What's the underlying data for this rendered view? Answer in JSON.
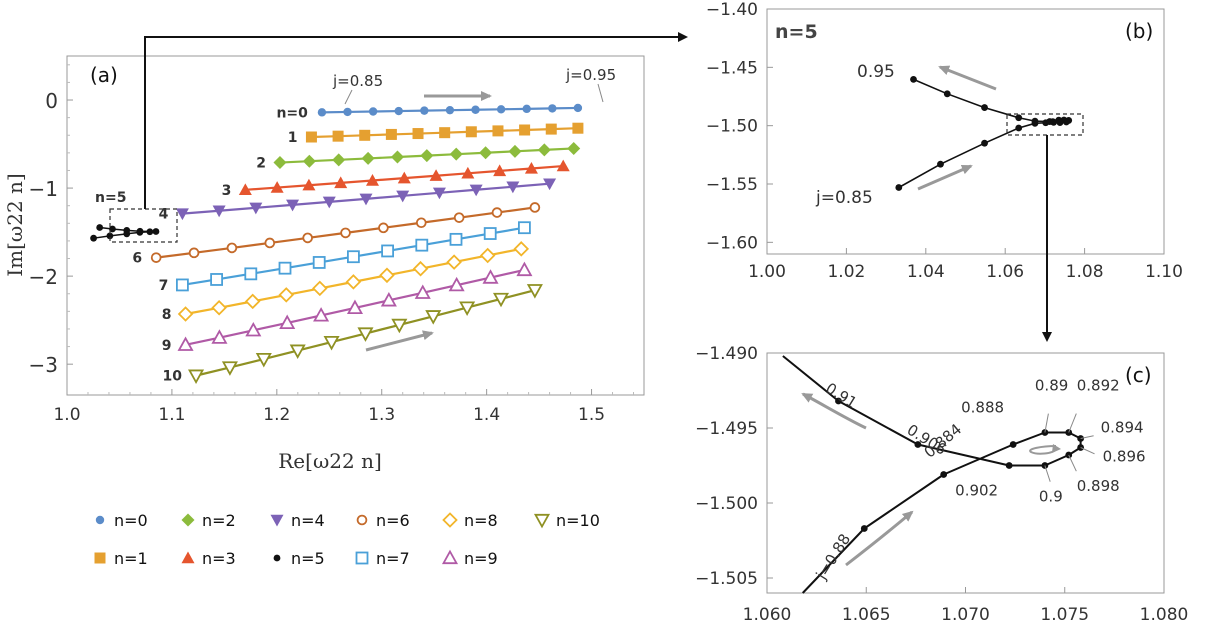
{
  "chart_data": [
    {
      "panel": "(a)",
      "type": "line",
      "xlabel": "Re[ω22 n]",
      "ylabel": "Im[ω22 n]",
      "xlim": [
        1.0,
        1.55
      ],
      "ylim": [
        -3.35,
        0.5
      ],
      "xticks": [
        "1.0",
        "1.1",
        "1.2",
        "1.3",
        "1.4",
        "1.5"
      ],
      "yticks": [
        "0",
        "-1",
        "-2",
        "-3"
      ],
      "annotations": [
        "j=0.85",
        "j=0.95",
        "n=5"
      ],
      "series": [
        {
          "name": "n=0",
          "label": "n=0",
          "color": "#5b8cc9",
          "marker": "circle",
          "re_range": [
            1.243,
            1.487
          ],
          "im_range": [
            -0.14,
            -0.09
          ]
        },
        {
          "name": "n=1",
          "label": "1",
          "color": "#e5a030",
          "marker": "square",
          "re_range": [
            1.233,
            1.487
          ],
          "im_range": [
            -0.42,
            -0.32
          ]
        },
        {
          "name": "n=2",
          "label": "2",
          "color": "#8cbb3c",
          "marker": "diamond",
          "re_range": [
            1.203,
            1.483
          ],
          "im_range": [
            -0.71,
            -0.55
          ]
        },
        {
          "name": "n=3",
          "label": "3",
          "color": "#e5552e",
          "marker": "triangle-up",
          "re_range": [
            1.17,
            1.473
          ],
          "im_range": [
            -1.02,
            -0.75
          ]
        },
        {
          "name": "n=4",
          "label": "4",
          "color": "#7c62b6",
          "marker": "triangle-down",
          "re_range": [
            1.11,
            1.46
          ],
          "im_range": [
            -1.29,
            -0.95
          ]
        },
        {
          "name": "n=5",
          "label": "n=5",
          "color": "#111111",
          "marker": "dot",
          "re_range": [
            1.033,
            1.076
          ],
          "im_range": [
            -1.56,
            -1.45
          ]
        },
        {
          "name": "n=6",
          "label": "6",
          "color": "#c46a2a",
          "marker": "open-circle",
          "re_range": [
            1.085,
            1.446
          ],
          "im_range": [
            -1.79,
            -1.22
          ]
        },
        {
          "name": "n=7",
          "label": "7",
          "color": "#4aa0d8",
          "marker": "open-square",
          "re_range": [
            1.11,
            1.436
          ],
          "im_range": [
            -2.1,
            -1.45
          ]
        },
        {
          "name": "n=8",
          "label": "8",
          "color": "#f2b52a",
          "marker": "open-diamond",
          "re_range": [
            1.113,
            1.433
          ],
          "im_range": [
            -2.43,
            -1.69
          ]
        },
        {
          "name": "n=9",
          "label": "9",
          "color": "#b05aa6",
          "marker": "open-triangle-up",
          "re_range": [
            1.113,
            1.436
          ],
          "im_range": [
            -2.78,
            -1.93
          ]
        },
        {
          "name": "n=10",
          "label": "10",
          "color": "#8f9123",
          "marker": "open-triangle-down",
          "re_range": [
            1.123,
            1.446
          ],
          "im_range": [
            -3.13,
            -2.16
          ]
        }
      ]
    },
    {
      "panel": "(b)",
      "type": "line",
      "title": "n=5",
      "xlim": [
        1.0,
        1.1
      ],
      "ylim": [
        -1.61,
        -1.4
      ],
      "xticks": [
        "1.00",
        "1.02",
        "1.04",
        "1.06",
        "1.08",
        "1.10"
      ],
      "yticks": [
        "-1.40",
        "-1.45",
        "-1.50",
        "-1.55",
        "-1.60"
      ],
      "annotations": [
        "0.95",
        "j=0.85"
      ],
      "points": [
        [
          1.0332,
          -1.553
        ],
        [
          1.0437,
          -1.533
        ],
        [
          1.0548,
          -1.515
        ],
        [
          1.0634,
          -1.502
        ],
        [
          1.0675,
          -1.498
        ],
        [
          1.0702,
          -1.4975
        ],
        [
          1.072,
          -1.4966
        ],
        [
          1.0735,
          -1.4953
        ],
        [
          1.0748,
          -1.4952
        ],
        [
          1.076,
          -1.4955
        ],
        [
          1.0754,
          -1.4968
        ],
        [
          1.0738,
          -1.4974
        ],
        [
          1.0722,
          -1.4972
        ],
        [
          1.0712,
          -1.4965
        ],
        [
          1.0675,
          -1.4961
        ],
        [
          1.0634,
          -1.4932
        ],
        [
          1.0548,
          -1.4845
        ],
        [
          1.0454,
          -1.4727
        ],
        [
          1.0369,
          -1.4603
        ]
      ]
    },
    {
      "panel": "(c)",
      "type": "line",
      "xlim": [
        1.06,
        1.08
      ],
      "ylim": [
        -1.506,
        -1.49
      ],
      "xticks": [
        "1.060",
        "1.065",
        "1.070",
        "1.075",
        "1.080"
      ],
      "yticks": [
        "-1.490",
        "-1.495",
        "-1.500",
        "-1.505"
      ],
      "labeled_points": [
        {
          "j": "0.88",
          "x": 1.0649,
          "y": -1.5017
        },
        {
          "j": "0.884",
          "x": 1.0689,
          "y": -1.4981
        },
        {
          "j": "0.888",
          "x": 1.0724,
          "y": -1.4961
        },
        {
          "j": "0.89",
          "x": 1.074,
          "y": -1.4953
        },
        {
          "j": "0.892",
          "x": 1.0752,
          "y": -1.4953
        },
        {
          "j": "0.894",
          "x": 1.0758,
          "y": -1.4957
        },
        {
          "j": "0.896",
          "x": 1.0758,
          "y": -1.4963
        },
        {
          "j": "0.898",
          "x": 1.0752,
          "y": -1.4968
        },
        {
          "j": "0.9",
          "x": 1.074,
          "y": -1.4975
        },
        {
          "j": "0.902",
          "x": 1.0722,
          "y": -1.4975
        },
        {
          "j": "0.906",
          "x": 1.0676,
          "y": -1.4961
        },
        {
          "j": "0.91",
          "x": 1.0636,
          "y": -1.4932
        }
      ]
    }
  ],
  "panel_labels": {
    "a": "(a)",
    "b": "(b)",
    "c": "(c)"
  },
  "legend": {
    "row1": [
      "n=0",
      "n=2",
      "n=4",
      "n=6",
      "n=8",
      "n=10"
    ],
    "row2": [
      "n=1",
      "n=3",
      "n=5",
      "n=7",
      "n=9"
    ]
  }
}
